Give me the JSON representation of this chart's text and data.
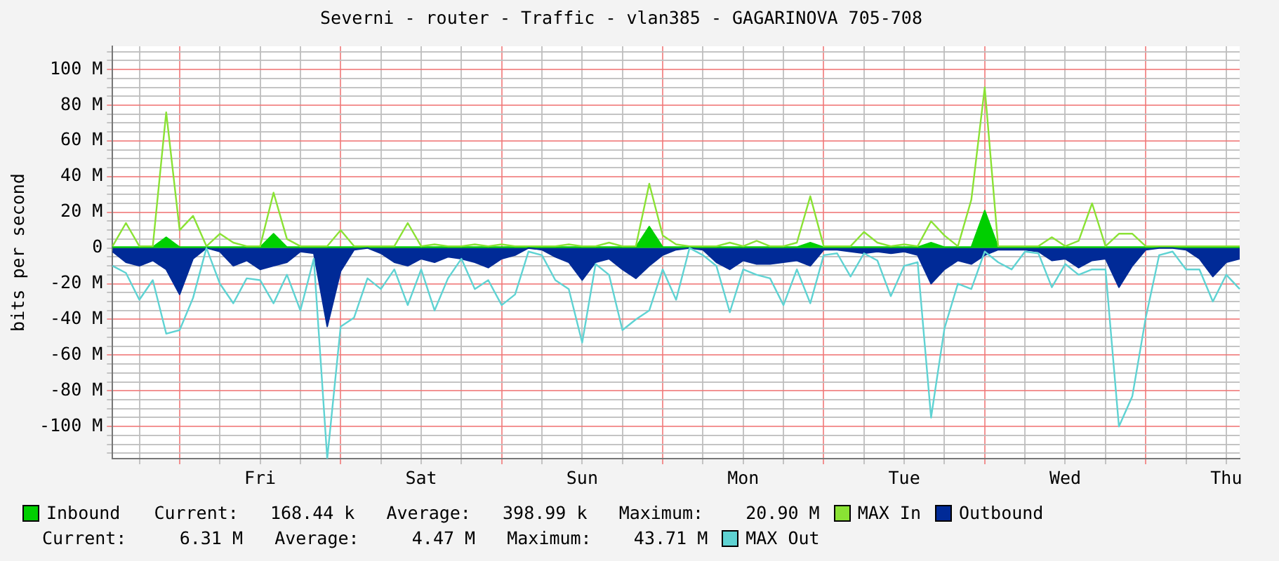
{
  "chart_data": {
    "type": "area",
    "title": "Severni - router - Traffic - vlan385 - GAGARINOVA 705-708",
    "ylabel": "bits per second",
    "categories": [
      null,
      null,
      null,
      null,
      null,
      null,
      null,
      null,
      null,
      null,
      null,
      "Fri",
      null,
      null,
      null,
      null,
      null,
      null,
      null,
      null,
      null,
      null,
      null,
      "Sat",
      null,
      null,
      null,
      null,
      null,
      null,
      null,
      null,
      null,
      null,
      null,
      "Sun",
      null,
      null,
      null,
      null,
      null,
      null,
      null,
      null,
      null,
      null,
      null,
      "Mon",
      null,
      null,
      null,
      null,
      null,
      null,
      null,
      null,
      null,
      null,
      null,
      "Tue",
      null,
      null,
      null,
      null,
      null,
      null,
      null,
      null,
      null,
      null,
      null,
      "Wed",
      null,
      null,
      null,
      null,
      null,
      null,
      null,
      null,
      null,
      null,
      null,
      "Thu",
      null
    ],
    "ylim": [
      -118,
      113
    ],
    "yticks": [
      {
        "value": -115,
        "label": null
      },
      {
        "value": -110,
        "label": null
      },
      {
        "value": -105,
        "label": null
      },
      {
        "value": -100,
        "label": "-100 M"
      },
      {
        "value": -95,
        "label": null
      },
      {
        "value": -90,
        "label": null
      },
      {
        "value": -85,
        "label": null
      },
      {
        "value": -80,
        "label": "-80 M"
      },
      {
        "value": -75,
        "label": null
      },
      {
        "value": -70,
        "label": null
      },
      {
        "value": -65,
        "label": null
      },
      {
        "value": -60,
        "label": "-60 M"
      },
      {
        "value": -55,
        "label": null
      },
      {
        "value": -50,
        "label": null
      },
      {
        "value": -45,
        "label": null
      },
      {
        "value": -40,
        "label": "-40 M"
      },
      {
        "value": -35,
        "label": null
      },
      {
        "value": -30,
        "label": null
      },
      {
        "value": -25,
        "label": null
      },
      {
        "value": -20,
        "label": "-20 M"
      },
      {
        "value": -15,
        "label": null
      },
      {
        "value": -10,
        "label": null
      },
      {
        "value": -5,
        "label": null
      },
      0,
      {
        "value": 5,
        "label": null
      },
      {
        "value": 10,
        "label": null
      },
      {
        "value": 15,
        "label": null
      },
      {
        "value": 20,
        "label": "20 M"
      },
      {
        "value": 25,
        "label": null
      },
      {
        "value": 30,
        "label": null
      },
      {
        "value": 35,
        "label": null
      },
      {
        "value": 40,
        "label": "40 M"
      },
      {
        "value": 45,
        "label": null
      },
      {
        "value": 50,
        "label": null
      },
      {
        "value": 55,
        "label": null
      },
      {
        "value": 60,
        "label": "60 M"
      },
      {
        "value": 65,
        "label": null
      },
      {
        "value": 70,
        "label": null
      },
      {
        "value": 75,
        "label": null
      },
      {
        "value": 80,
        "label": "80 M"
      },
      {
        "value": 85,
        "label": null
      },
      {
        "value": 90,
        "label": null
      },
      {
        "value": 95,
        "label": null
      },
      {
        "value": 100,
        "label": "100 M"
      },
      {
        "value": 105,
        "label": null
      },
      {
        "value": 110,
        "label": null
      }
    ],
    "grid": true,
    "legend": "bottom",
    "annotations": [
      "Current:   168.44 k   Average:   398.99 k   Maximum:    20.90 M",
      "Current:     6.31 M   Average:     4.47 M   Maximum:    43.71 M"
    ],
    "series": [
      {
        "name": "Inbound",
        "color": "#00cf00",
        "values": [
          0.5,
          0.5,
          0.5,
          0.5,
          6,
          0.5,
          0.5,
          0.5,
          0.5,
          0.5,
          0.5,
          0.5,
          8,
          0.5,
          0.5,
          0.5,
          0.5,
          0.5,
          0.5,
          0.5,
          0.5,
          0.5,
          0.5,
          0.5,
          0.5,
          0.5,
          0.5,
          0.5,
          0.5,
          0.5,
          0.5,
          0.5,
          0.5,
          0.5,
          0.5,
          0.5,
          0.5,
          0.5,
          0.5,
          0.5,
          12,
          0.5,
          0.5,
          0.5,
          0.5,
          0.5,
          0.5,
          0.5,
          0.5,
          0.5,
          0.5,
          0.5,
          3,
          0.5,
          0.5,
          0.5,
          0.5,
          0.5,
          0.5,
          0.5,
          0.5,
          3,
          0.5,
          0.5,
          0.5,
          21,
          0.5,
          0.5,
          0.5,
          0.5,
          0.5,
          0.5,
          0.5,
          0.5,
          0.5,
          0.5,
          0.5,
          0.5,
          0.5,
          0.5,
          0.5,
          0.5,
          0.5,
          0.5,
          0.5
        ]
      },
      {
        "name": "MAX In",
        "type": "line",
        "color": "#8ae234",
        "values": [
          1,
          14,
          1,
          1,
          76,
          10,
          18,
          1,
          8,
          3,
          1,
          1,
          31,
          5,
          1,
          1,
          1,
          10,
          1,
          1,
          1,
          1,
          14,
          1,
          2,
          1,
          1,
          2,
          1,
          2,
          1,
          1,
          1,
          1,
          2,
          1,
          1,
          3,
          1,
          1,
          36,
          7,
          2,
          1,
          1,
          1,
          3,
          1,
          4,
          1,
          1,
          3,
          29,
          1,
          1,
          1,
          9,
          3,
          1,
          2,
          1,
          15,
          7,
          1,
          27,
          90,
          1,
          1,
          1,
          1,
          6,
          1,
          4,
          25,
          1,
          8,
          8,
          1,
          1,
          1,
          1,
          1,
          1,
          1,
          1
        ]
      },
      {
        "name": "Outbound",
        "color": "#002a97",
        "values": [
          -2,
          -8,
          -10,
          -7,
          -12,
          -26,
          -6,
          0,
          -2,
          -10,
          -7,
          -12,
          -10,
          -8,
          -2,
          -3,
          -44,
          -13,
          -1,
          0,
          -3,
          -8,
          -10,
          -6,
          -8,
          -5,
          -6,
          -8,
          -11,
          -6,
          -4,
          0,
          -1,
          -5,
          -8,
          -18,
          -8,
          -6,
          -12,
          -17,
          -10,
          -4,
          -1,
          0,
          -1,
          -8,
          -12,
          -7,
          -9,
          -9,
          -8,
          -7,
          -10,
          -1,
          -1,
          -2,
          -3,
          -2,
          -3,
          -2,
          -4,
          -20,
          -12,
          -7,
          -9,
          -4,
          -1,
          -1,
          -1,
          -2,
          -7,
          -6,
          -11,
          -7,
          -6,
          -22,
          -10,
          -1,
          0,
          0,
          -1,
          -6,
          -16,
          -8,
          -6
        ]
      },
      {
        "name": "MAX Out",
        "type": "line",
        "color": "#5fd3d3",
        "values": [
          -10,
          -14,
          -29,
          -18,
          -48,
          -46,
          -28,
          0,
          -20,
          -31,
          -17,
          -18,
          -31,
          -15,
          -35,
          -6,
          -118,
          -44,
          -39,
          -17,
          -23,
          -12,
          -32,
          -12,
          -35,
          -17,
          -6,
          -23,
          -18,
          -32,
          -26,
          -2,
          -4,
          -18,
          -23,
          -53,
          -9,
          -15,
          -46,
          -40,
          -35,
          -12,
          -29,
          0,
          -4,
          -10,
          -36,
          -12,
          -15,
          -17,
          -32,
          -12,
          -31,
          -4,
          -3,
          -16,
          -3,
          -7,
          -27,
          -10,
          -8,
          -95,
          -45,
          -20,
          -23,
          -2,
          -8,
          -12,
          -2,
          -3,
          -22,
          -9,
          -15,
          -12,
          -12,
          -100,
          -83,
          -39,
          -4,
          -2,
          -12,
          -12,
          -30,
          -15,
          -23
        ]
      }
    ]
  }
}
